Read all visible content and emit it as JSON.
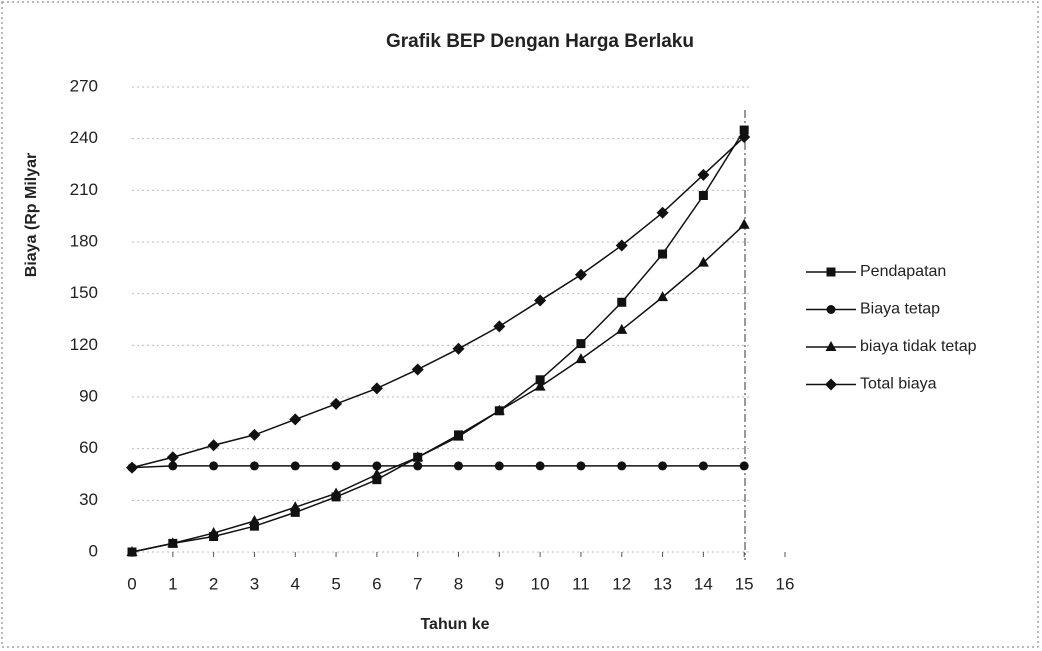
{
  "chart_data": {
    "type": "line",
    "title": "Grafik BEP Dengan Harga Berlaku",
    "xlabel": "Tahun ke",
    "ylabel": "Biaya (Rp Milyar",
    "x": [
      0,
      1,
      2,
      3,
      4,
      5,
      6,
      7,
      8,
      9,
      10,
      11,
      12,
      13,
      14,
      15
    ],
    "series": [
      {
        "name": "Pendapatan",
        "color": "#111111",
        "marker": "square",
        "values": [
          0,
          5,
          9,
          15,
          23,
          32,
          42,
          55,
          68,
          82,
          100,
          121,
          145,
          173,
          207,
          245
        ]
      },
      {
        "name": "Biaya tetap",
        "color": "#111111",
        "marker": "circle",
        "values": [
          49,
          50,
          50,
          50,
          50,
          50,
          50,
          50,
          50,
          50,
          50,
          50,
          50,
          50,
          50,
          50
        ]
      },
      {
        "name": "biaya tidak tetap",
        "color": "#111111",
        "marker": "triangle",
        "values": [
          0,
          5,
          11,
          18,
          26,
          34,
          45,
          55,
          67,
          82,
          96,
          112,
          129,
          148,
          168,
          190
        ]
      },
      {
        "name": "Total biaya",
        "color": "#111111",
        "marker": "diamond",
        "values": [
          49,
          55,
          62,
          68,
          77,
          86,
          95,
          106,
          118,
          131,
          146,
          161,
          178,
          197,
          219,
          241
        ]
      }
    ],
    "xlim": [
      0,
      16
    ],
    "xticks": [
      0,
      1,
      2,
      3,
      4,
      5,
      6,
      7,
      8,
      9,
      10,
      11,
      12,
      13,
      14,
      15,
      16
    ],
    "ylim": [
      0,
      270
    ],
    "yticks": [
      0,
      30,
      60,
      90,
      120,
      150,
      180,
      210,
      240,
      270
    ],
    "grid": true,
    "legend": "right"
  }
}
